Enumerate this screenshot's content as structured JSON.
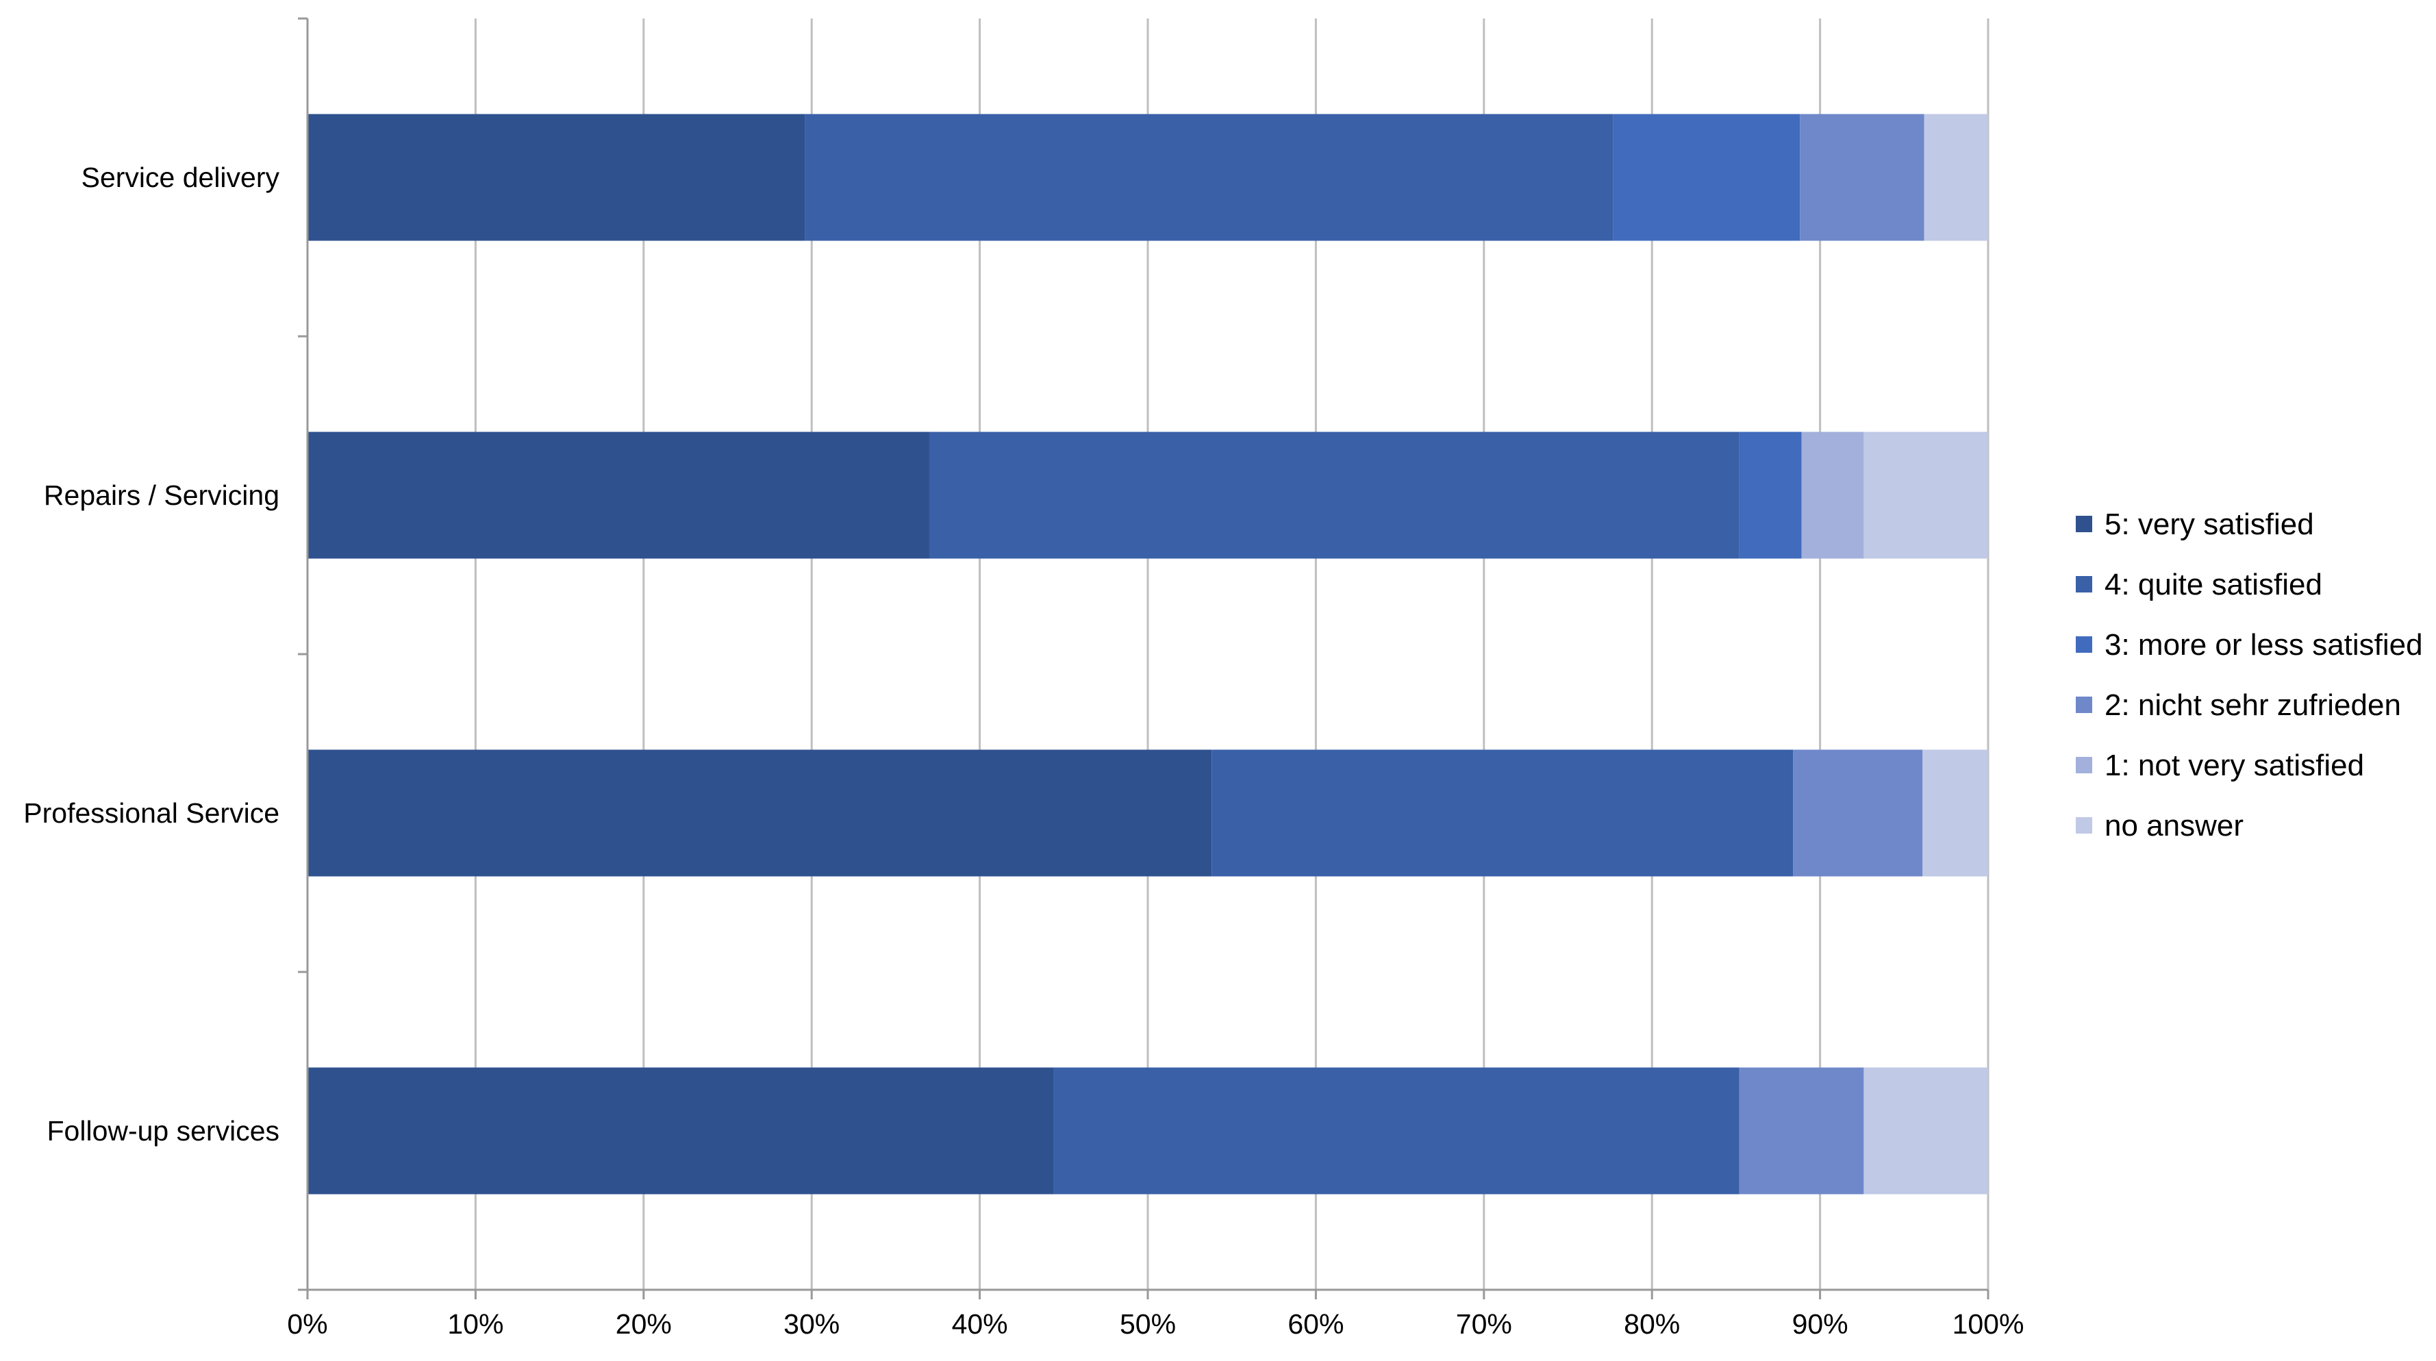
{
  "chart_data": {
    "type": "bar",
    "orientation": "horizontal",
    "stacked": "percent",
    "title": "",
    "xlabel": "",
    "ylabel": "",
    "xlim": [
      0,
      100
    ],
    "x_ticks": [
      "0%",
      "10%",
      "20%",
      "30%",
      "40%",
      "50%",
      "60%",
      "70%",
      "80%",
      "90%",
      "100%"
    ],
    "grid": true,
    "legend_position": "right",
    "categories": [
      "Service delivery",
      "Repairs / Servicing",
      "Professional Service",
      "Follow-up services"
    ],
    "series": [
      {
        "name": "5: very satisfied",
        "color": "#2f528f",
        "values": [
          29.6,
          37.0,
          53.8,
          44.4
        ]
      },
      {
        "name": "4: quite satisfied",
        "color": "#3a60a8",
        "values": [
          48.1,
          48.2,
          34.6,
          40.8
        ]
      },
      {
        "name": "3: more or less satisfied",
        "color": "#416bbd",
        "values": [
          11.1,
          3.7,
          0.0,
          0.0
        ]
      },
      {
        "name": "2: nicht sehr zufrieden",
        "color": "#6f88ca",
        "values": [
          7.4,
          0.0,
          7.7,
          7.4
        ]
      },
      {
        "name": "1: not very satisfied",
        "color": "#a2b0db",
        "values": [
          0.0,
          3.7,
          0.0,
          0.0
        ]
      },
      {
        "name": "no answer",
        "color": "#c0c9e6",
        "values": [
          3.8,
          7.4,
          3.9,
          7.4
        ]
      }
    ]
  }
}
